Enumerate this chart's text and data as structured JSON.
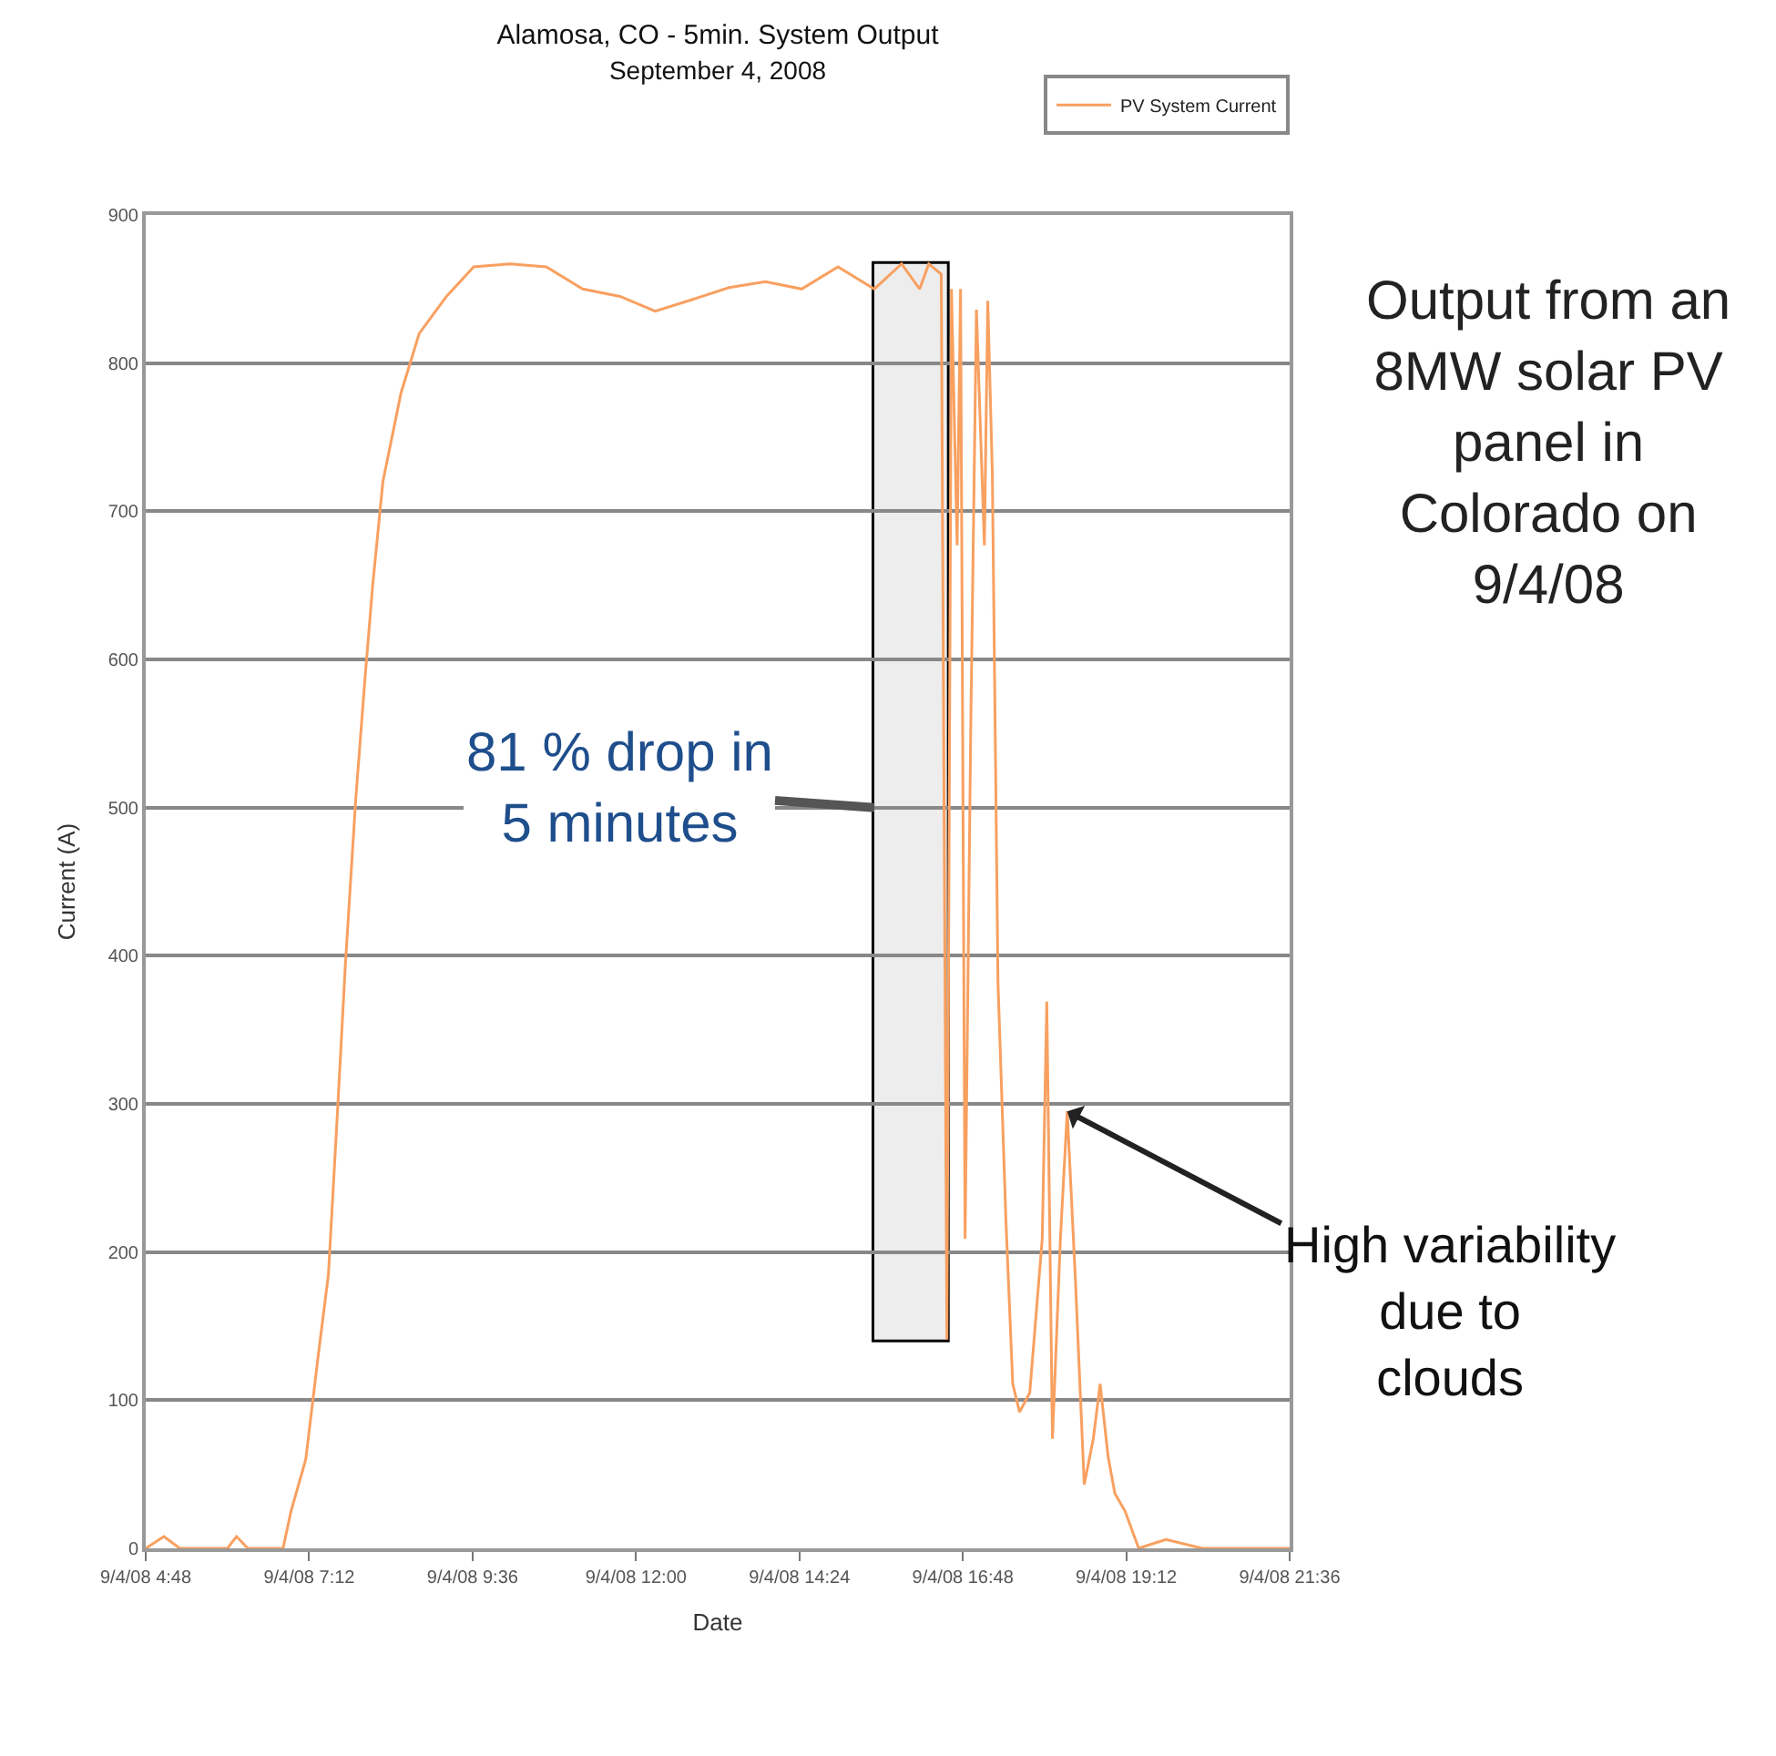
{
  "chart_data": {
    "type": "line",
    "title": "Alamosa, CO - 5min. System Output",
    "subtitle": "September 4, 2008",
    "xlabel": "Date",
    "ylabel": "Current (A)",
    "x": [
      "2008-09-04T04:48",
      "2008-09-04T05:04",
      "2008-09-04T05:18",
      "2008-09-04T06:00",
      "2008-09-04T06:08",
      "2008-09-04T06:18",
      "2008-09-04T06:49",
      "2008-09-04T06:56",
      "2008-09-04T07:09",
      "2008-09-04T07:20",
      "2008-09-04T07:29",
      "2008-09-04T07:37",
      "2008-09-04T07:44",
      "2008-09-04T07:53",
      "2008-09-04T08:01",
      "2008-09-04T08:08",
      "2008-09-04T08:17",
      "2008-09-04T08:33",
      "2008-09-04T08:49",
      "2008-09-04T09:13",
      "2008-09-04T09:37",
      "2008-09-04T10:09",
      "2008-09-04T10:41",
      "2008-09-04T11:13",
      "2008-09-04T11:46",
      "2008-09-04T12:17",
      "2008-09-04T12:50",
      "2008-09-04T13:22",
      "2008-09-04T13:54",
      "2008-09-04T14:26",
      "2008-09-04T14:58",
      "2008-09-04T15:30",
      "2008-09-04T15:54",
      "2008-09-04T16:10",
      "2008-09-04T16:18",
      "2008-09-04T16:29",
      "2008-09-04T16:34",
      "2008-09-04T16:38",
      "2008-09-04T16:43",
      "2008-09-04T16:46",
      "2008-09-04T16:50",
      "2008-09-04T16:55",
      "2008-09-04T17:00",
      "2008-09-04T17:07",
      "2008-09-04T17:10",
      "2008-09-04T17:14",
      "2008-09-04T17:19",
      "2008-09-04T17:26",
      "2008-09-04T17:32",
      "2008-09-04T17:38",
      "2008-09-04T17:47",
      "2008-09-04T17:58",
      "2008-09-04T18:02",
      "2008-09-04T18:07",
      "2008-09-04T18:14",
      "2008-09-04T18:20",
      "2008-09-04T18:27",
      "2008-09-04T18:35",
      "2008-09-04T18:43",
      "2008-09-04T18:49",
      "2008-09-04T18:56",
      "2008-09-04T19:02",
      "2008-09-04T19:11",
      "2008-09-04T19:23",
      "2008-09-04T19:47",
      "2008-09-04T20:19",
      "2008-09-04T21:36"
    ],
    "series": [
      {
        "name": "PV System Current",
        "color": "#f8a060",
        "values": [
          0,
          8,
          0,
          0,
          8,
          0,
          0,
          25,
          60,
          130,
          185,
          295,
          395,
          505,
          585,
          650,
          720,
          780,
          820,
          845,
          865,
          867,
          865,
          850,
          845,
          835,
          843,
          851,
          855,
          850,
          865,
          850,
          867,
          850,
          867,
          860,
          141,
          850,
          677,
          850,
          209,
          554,
          836,
          677,
          842,
          726,
          382,
          221,
          111,
          92,
          105,
          209,
          369,
          74,
          209,
          295,
          185,
          43,
          74,
          111,
          62,
          37,
          25,
          0,
          6,
          0,
          0
        ]
      }
    ],
    "xlim": [
      "2008-09-04T04:48",
      "2008-09-04T21:36"
    ],
    "xticks": [
      {
        "value": "2008-09-04T04:48",
        "label": "9/4/08 4:48"
      },
      {
        "value": "2008-09-04T07:12",
        "label": "9/4/08 7:12"
      },
      {
        "value": "2008-09-04T09:36",
        "label": "9/4/08 9:36"
      },
      {
        "value": "2008-09-04T12:00",
        "label": "9/4/08 12:00"
      },
      {
        "value": "2008-09-04T14:24",
        "label": "9/4/08 14:24"
      },
      {
        "value": "2008-09-04T16:48",
        "label": "9/4/08 16:48"
      },
      {
        "value": "2008-09-04T19:12",
        "label": "9/4/08 19:12"
      },
      {
        "value": "2008-09-04T21:36",
        "label": "9/4/08 21:36"
      }
    ],
    "ylim": [
      0,
      900
    ],
    "yticks": [
      0,
      100,
      200,
      300,
      400,
      500,
      600,
      700,
      800,
      900
    ],
    "grid": "y",
    "legend": "top right",
    "marker": "none",
    "line_style": "solid",
    "bands": [
      {
        "axis": "x",
        "from": "2008-09-04T15:30",
        "to": "2008-09-04T16:34",
        "color": "#000000"
      }
    ],
    "annotations": [
      {
        "text": "81 % drop in\n5 minutes",
        "x": "2008-09-04T15:30",
        "y": 500
      },
      {
        "text": "High variability\ndue to\nclouds",
        "x": "2008-09-04T18:20",
        "y": 295
      },
      "Output from an\n8MW solar PV\npanel in\nColorado on\n9/4/08"
    ]
  }
}
